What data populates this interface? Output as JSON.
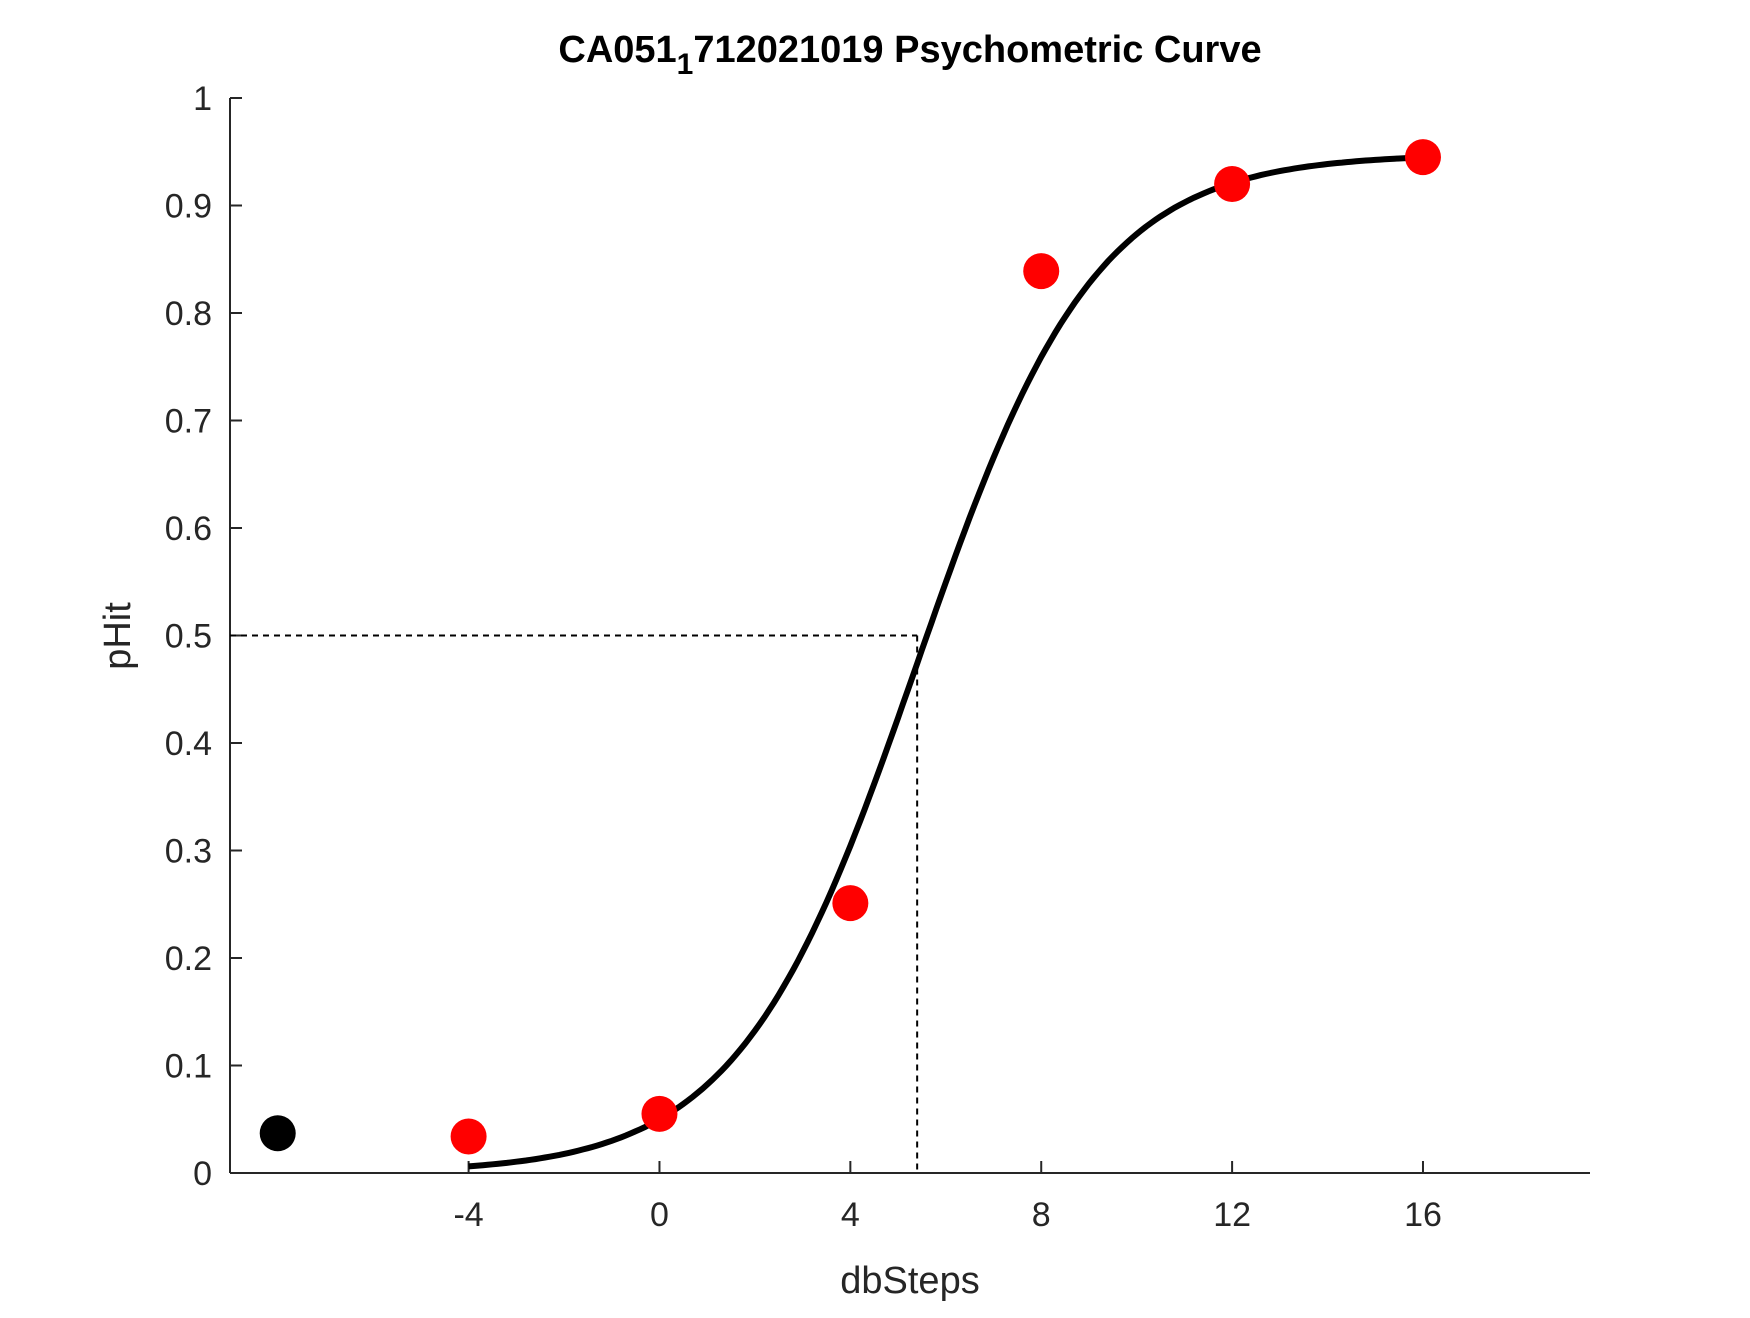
{
  "chart_data": {
    "type": "scatter",
    "title": {
      "main": "CA051",
      "subscript": "1",
      "rest": "712021019 Psychometric Curve"
    },
    "xlabel": "dbSteps",
    "ylabel": "pHit",
    "xlim": [
      -9,
      19.5
    ],
    "ylim": [
      0,
      1
    ],
    "xticks": [
      -4,
      0,
      4,
      8,
      12,
      16
    ],
    "xtick_labels": [
      "-4",
      "0",
      "4",
      "8",
      "12",
      "16"
    ],
    "yticks": [
      0,
      0.1,
      0.2,
      0.3,
      0.4,
      0.5,
      0.6,
      0.7,
      0.8,
      0.9,
      1
    ],
    "ytick_labels": [
      "0",
      "0.1",
      "0.2",
      "0.3",
      "0.4",
      "0.5",
      "0.6",
      "0.7",
      "0.8",
      "0.9",
      "1"
    ],
    "grid": false,
    "series": [
      {
        "kind": "points",
        "color": "#ff0000",
        "x": [
          -4,
          0,
          4,
          8,
          12,
          16
        ],
        "y": [
          0.034,
          0.055,
          0.251,
          0.839,
          0.92,
          0.945
        ]
      },
      {
        "kind": "points",
        "color": "#000000",
        "x": [
          -8
        ],
        "y": [
          0.037
        ]
      },
      {
        "kind": "fit-curve",
        "color": "#000000",
        "model": "logistic",
        "guess": 0.0,
        "lapse": 0.052,
        "x_range": [
          -4,
          16
        ],
        "threshold": 5.4
      }
    ],
    "threshold_marker": {
      "x": 5.4,
      "y": 0.5,
      "style": "dashed"
    }
  }
}
